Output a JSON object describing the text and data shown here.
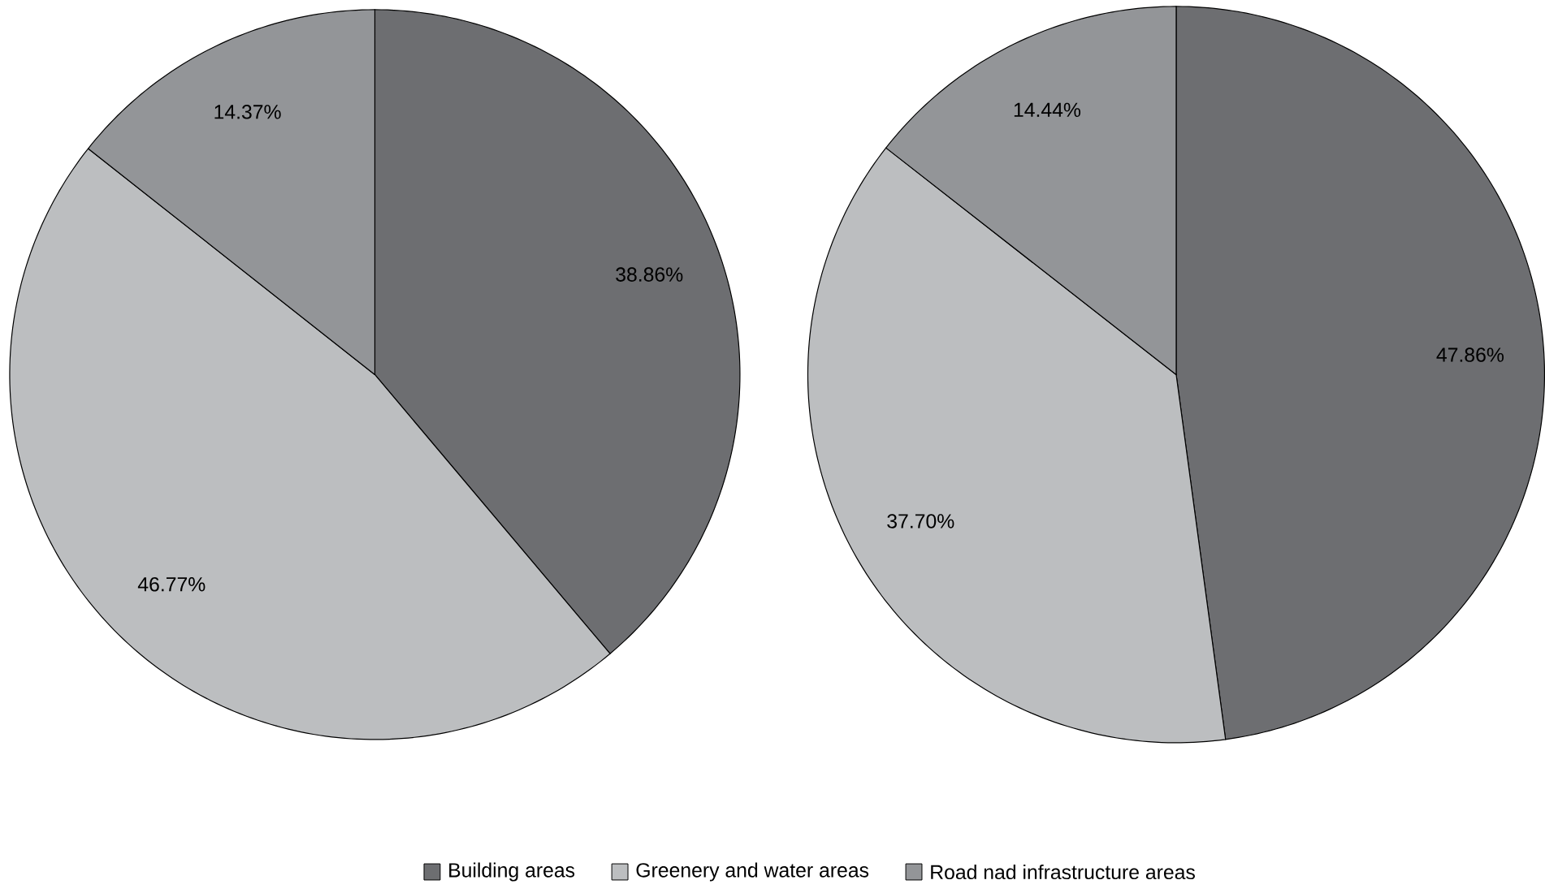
{
  "chart_data": [
    {
      "type": "pie",
      "categories": [
        "Building areas",
        "Greenery and water areas",
        "Road nad infrastructure areas"
      ],
      "values": [
        38.86,
        46.77,
        14.37
      ],
      "value_labels": [
        "38.86%",
        "46.77%",
        "14.37%"
      ],
      "colors": [
        "#6d6e71",
        "#bcbec0",
        "#939598"
      ],
      "legend": "bottom"
    },
    {
      "type": "pie",
      "values": [
        47.86,
        37.7,
        14.44
      ],
      "value_labels": [
        "47.86%",
        "37.70%",
        "14.44%"
      ],
      "colors": [
        "#6d6e71",
        "#bcbec0",
        "#939598"
      ]
    }
  ]
}
